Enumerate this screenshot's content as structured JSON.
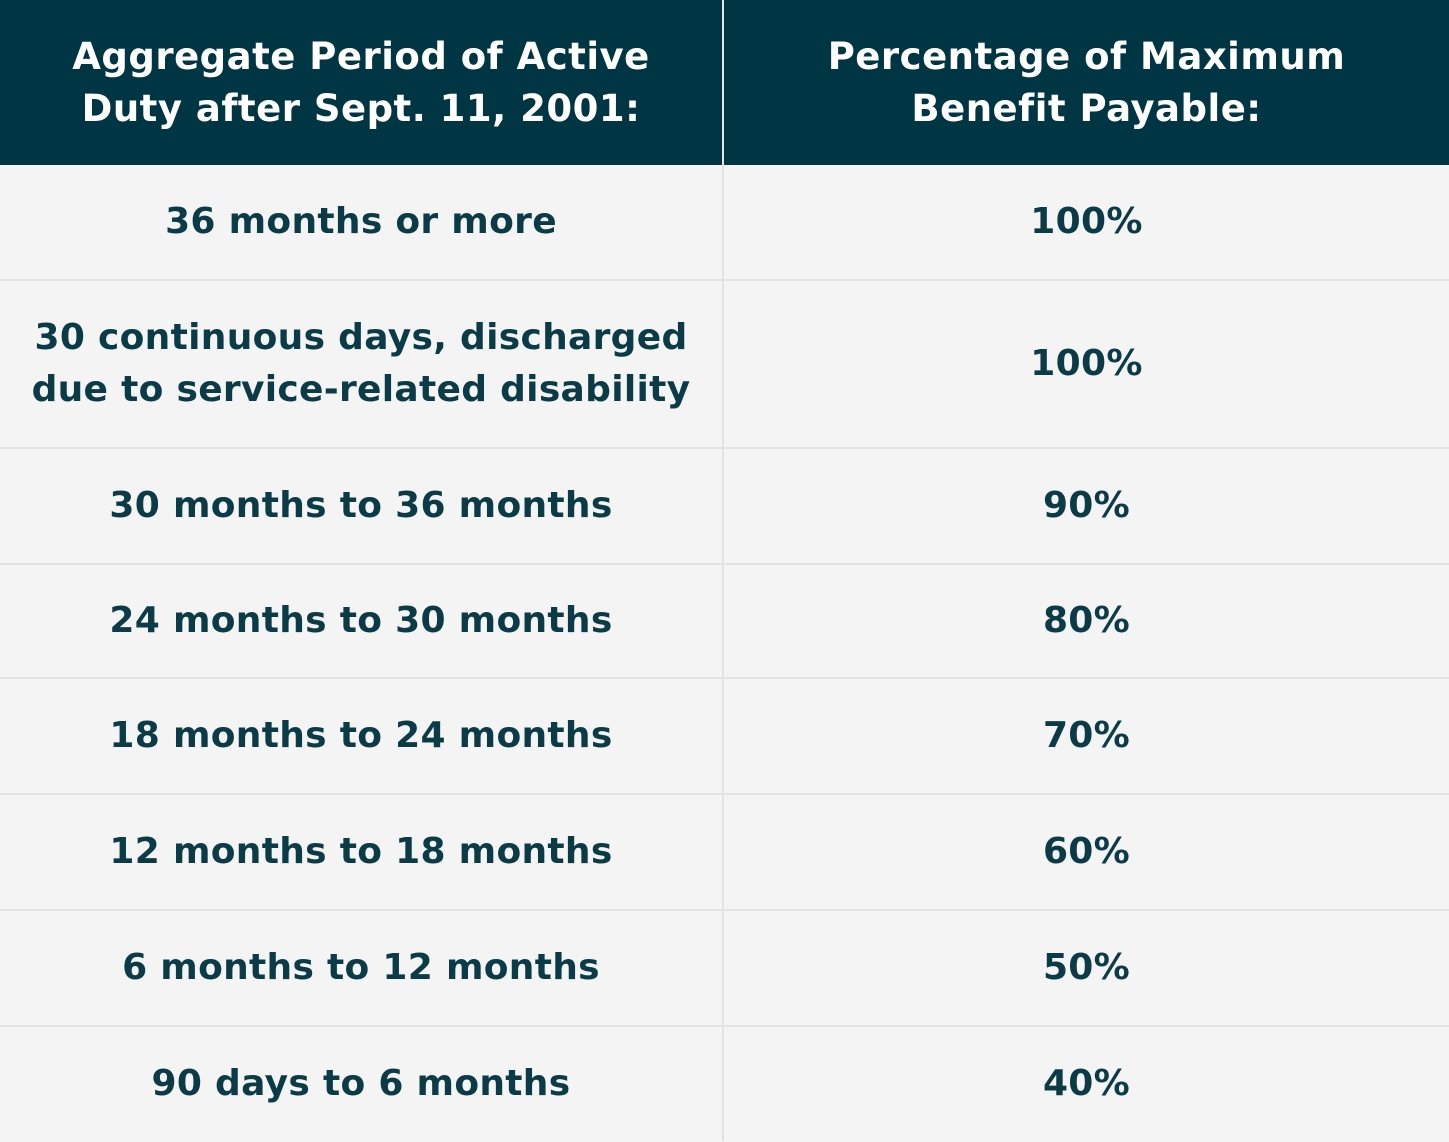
{
  "table": {
    "headers": [
      "Aggregate Period of Active Duty after Sept. 11, 2001:",
      "Percentage of Maximum Benefit Payable:"
    ],
    "rows": [
      {
        "period": "36 months or more",
        "percentage": "100%"
      },
      {
        "period": "30 continuous days, discharged due to service-related disability",
        "percentage": "100%"
      },
      {
        "period": "30 months to 36 months",
        "percentage": "90%"
      },
      {
        "period": "24 months to 30 months",
        "percentage": "80%"
      },
      {
        "period": "18 months to 24 months",
        "percentage": "70%"
      },
      {
        "period": "12 months to 18 months",
        "percentage": "60%"
      },
      {
        "period": "6 months to 12 months",
        "percentage": "50%"
      },
      {
        "period": "90 days to 6 months",
        "percentage": "40%"
      }
    ]
  },
  "colors": {
    "header_bg": "#003543",
    "header_text": "#ffffff",
    "row_bg": "#f4f4f4",
    "row_text": "#0b3b47",
    "divider": "#e3e3e3"
  }
}
